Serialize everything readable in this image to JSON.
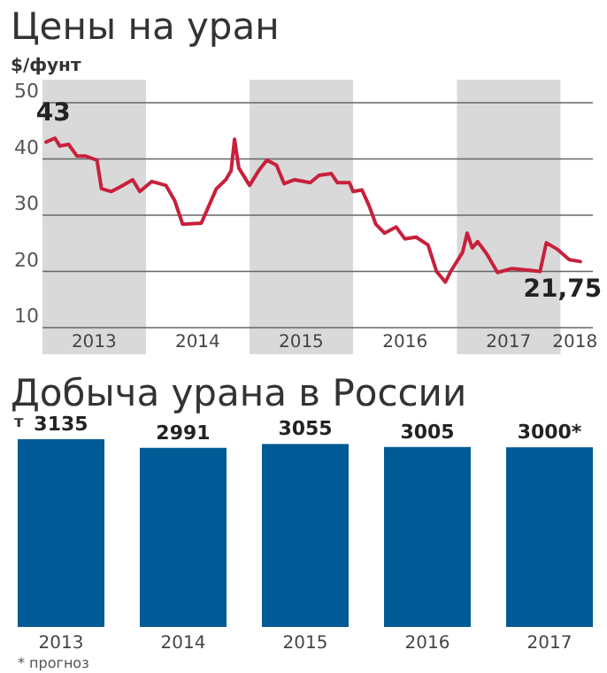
{
  "chart_data": [
    {
      "type": "line",
      "title": "Цены на уран",
      "ylabel": "$/фунт",
      "x": [
        "2013-01-14",
        "2013-02-14",
        "2013-03-03",
        "2013-04-03",
        "2013-05-03",
        "2013-06-03",
        "2013-07-12",
        "2013-07-28",
        "2013-09-01",
        "2013-10-01",
        "2013-11-15",
        "2013-12-10",
        "2014-01-21",
        "2014-03-12",
        "2014-04-12",
        "2014-05-10",
        "2014-07-15",
        "2014-09-06",
        "2014-10-09",
        "2014-10-28",
        "2014-11-09",
        "2014-11-24",
        "2015-01-01",
        "2015-02-02",
        "2015-03-03",
        "2015-04-06",
        "2015-05-03",
        "2015-06-09",
        "2015-08-03",
        "2015-09-03",
        "2015-10-16",
        "2015-11-06",
        "2015-12-19",
        "2016-01-01",
        "2016-02-01",
        "2016-02-27",
        "2016-03-21",
        "2016-04-21",
        "2016-06-01",
        "2016-07-01",
        "2016-08-10",
        "2016-09-21",
        "2016-10-21",
        "2016-11-21",
        "2016-12-10",
        "2017-01-21",
        "2017-02-06",
        "2017-02-24",
        "2017-03-15",
        "2017-04-15",
        "2017-05-24",
        "2017-07-12",
        "2017-09-15",
        "2017-10-21",
        "2017-11-12",
        "2017-12-19",
        "2018-02-01",
        "2018-03-12"
      ],
      "series": [
        {
          "color": "#c8203c",
          "values": [
            43,
            43.7,
            42.3,
            42.6,
            40.5,
            40.5,
            39.8,
            34.7,
            34.2,
            35,
            36.3,
            34.2,
            36,
            35.3,
            32.6,
            28.4,
            28.6,
            34.7,
            36.3,
            37.9,
            43.5,
            38.4,
            35.3,
            37.9,
            39.8,
            38.9,
            35.6,
            36.3,
            35.8,
            37.1,
            37.4,
            35.8,
            35.8,
            34.2,
            34.5,
            31.6,
            28.4,
            26.8,
            27.9,
            25.8,
            26.1,
            24.7,
            20,
            18.1,
            20,
            23.4,
            26.8,
            24.2,
            25.3,
            23.2,
            19.8,
            20.5,
            20.2,
            20,
            25.1,
            24,
            22.1,
            21.75
          ]
        }
      ],
      "xlim": [
        "2013-01-01",
        "2018-04-25"
      ],
      "xticks": [
        {
          "value": "2013-07-02",
          "label": "2013"
        },
        {
          "value": "2014-07-02",
          "label": "2014"
        },
        {
          "value": "2015-07-02",
          "label": "2015"
        },
        {
          "value": "2016-07-02",
          "label": "2016"
        },
        {
          "value": "2017-07-02",
          "label": "2017"
        },
        {
          "value": "2018-02-21",
          "label": "2018"
        }
      ],
      "ylim": [
        10,
        50
      ],
      "yticks": [
        10,
        20,
        30,
        40,
        50
      ],
      "grid": "y",
      "bands": [
        {
          "axis": "x",
          "from": "2013-01-01",
          "to": "2014-01-01",
          "color": "#d9d9d9"
        },
        {
          "axis": "x",
          "from": "2015-01-01",
          "to": "2016-01-01",
          "color": "#d9d9d9"
        },
        {
          "axis": "x",
          "from": "2017-01-01",
          "to": "2018-01-01",
          "color": "#d9d9d9"
        }
      ],
      "annotations": [
        {
          "text": "43",
          "x": "2013-01-14",
          "y": 43
        },
        {
          "text": "21,75",
          "x": "2018-03-12",
          "y": 21.75
        }
      ]
    },
    {
      "type": "bar",
      "title": "Добыча урана в России",
      "ylabel": "т",
      "categories": [
        "2013",
        "2014",
        "2015",
        "2016",
        "2017"
      ],
      "values": [
        3135,
        2991,
        3055,
        3005,
        3000
      ],
      "color": "#005a96",
      "value_labels": [
        "3135",
        "2991",
        "3055",
        "3005",
        "3000*"
      ],
      "tick_labels": "x",
      "annotations": [
        "* прогноз"
      ]
    }
  ]
}
